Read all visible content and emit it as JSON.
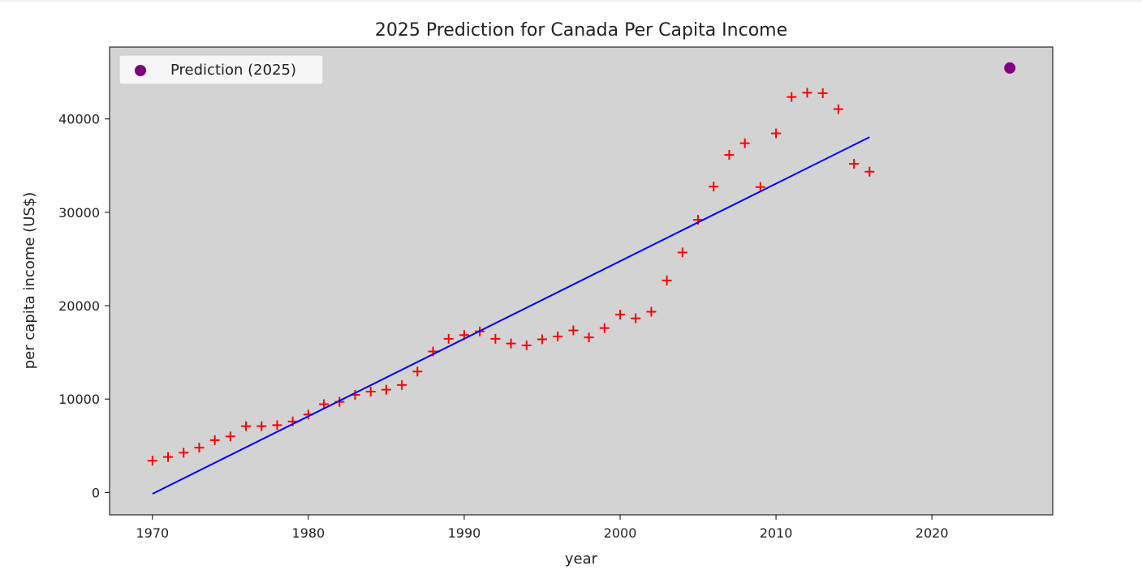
{
  "chart_data": {
    "type": "scatter",
    "title": "2025 Prediction for Canada Per Capita Income",
    "xlabel": "year",
    "ylabel": "per capita income (US$)",
    "xlim": [
      1967.25,
      2027.75
    ],
    "ylim": [
      -2400,
      47700
    ],
    "xticks": [
      1970,
      1980,
      1990,
      2000,
      2010,
      2020
    ],
    "yticks": [
      0,
      10000,
      20000,
      30000,
      40000
    ],
    "plot_background": "#d3d3d3",
    "grid": false,
    "legend": {
      "placement": "top-left",
      "entries": [
        "Prediction (2025)"
      ]
    },
    "series": [
      {
        "kind": "scatter",
        "marker": "+",
        "color": "#ff0000",
        "x": [
          1970,
          1971,
          1972,
          1973,
          1974,
          1975,
          1976,
          1977,
          1978,
          1979,
          1980,
          1981,
          1982,
          1983,
          1984,
          1985,
          1986,
          1987,
          1988,
          1989,
          1990,
          1991,
          1992,
          1993,
          1994,
          1995,
          1996,
          1997,
          1998,
          1999,
          2000,
          2001,
          2002,
          2003,
          2004,
          2005,
          2006,
          2007,
          2008,
          2009,
          2010,
          2011,
          2012,
          2013,
          2014,
          2015,
          2016
        ],
        "y": [
          3400,
          3800,
          4250,
          4800,
          5600,
          6000,
          7100,
          7100,
          7200,
          7600,
          8350,
          9450,
          9700,
          10450,
          10800,
          11000,
          11500,
          12950,
          15100,
          16450,
          16850,
          17250,
          16450,
          15950,
          15750,
          16400,
          16700,
          17350,
          16600,
          17600,
          19050,
          18650,
          19350,
          22700,
          25700,
          29200,
          32750,
          36150,
          37400,
          32700,
          38450,
          42350,
          42800,
          42750,
          41050,
          35200,
          34350
        ]
      },
      {
        "kind": "line",
        "color": "#0000ff",
        "x": [
          1970,
          2016
        ],
        "y": [
          -150,
          38050
        ]
      },
      {
        "kind": "scatter",
        "marker": "o",
        "name": "Prediction (2025)",
        "color": "#800080",
        "x": [
          2025
        ],
        "y": [
          45450
        ]
      }
    ]
  }
}
